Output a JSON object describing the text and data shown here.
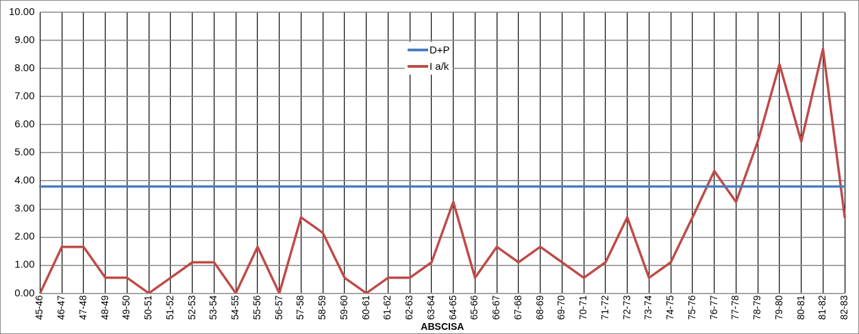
{
  "chart_data": {
    "type": "line",
    "xlabel": "ABSCISA",
    "categories": [
      "45-46",
      "46-47",
      "47-48",
      "48-49",
      "49-50",
      "50-51",
      "51-52",
      "52-53",
      "53-54",
      "54-55",
      "55-56",
      "56-57",
      "57-58",
      "58-59",
      "59-60",
      "60-61",
      "61-62",
      "62-63",
      "63-64",
      "64-65",
      "65-66",
      "66-67",
      "67-68",
      "68-69",
      "69-70",
      "70-71",
      "71-72",
      "72-73",
      "73-74",
      "74-75",
      "75-76",
      "76-77",
      "77-78",
      "78-79",
      "79-80",
      "80-81",
      "81-82",
      "82-83"
    ],
    "series": [
      {
        "name": "D+P",
        "color": "#4a7ebb",
        "values": [
          3.8,
          3.8,
          3.8,
          3.8,
          3.8,
          3.8,
          3.8,
          3.8,
          3.8,
          3.8,
          3.8,
          3.8,
          3.8,
          3.8,
          3.8,
          3.8,
          3.8,
          3.8,
          3.8,
          3.8,
          3.8,
          3.8,
          3.8,
          3.8,
          3.8,
          3.8,
          3.8,
          3.8,
          3.8,
          3.8,
          3.8,
          3.8,
          3.8,
          3.8,
          3.8,
          3.8,
          3.8,
          3.8
        ]
      },
      {
        "name": "I a/k",
        "color": "#be4b48",
        "values": [
          0,
          1.65,
          1.65,
          0.55,
          0.55,
          0,
          0.55,
          1.1,
          1.1,
          0,
          1.65,
          0,
          2.7,
          2.15,
          0.55,
          0,
          0.55,
          0.55,
          1.1,
          3.25,
          0.55,
          1.65,
          1.1,
          1.65,
          1.1,
          0.55,
          1.1,
          2.7,
          0.55,
          1.1,
          2.7,
          4.35,
          3.25,
          5.4,
          8.15,
          5.4,
          8.7,
          2.7
        ]
      }
    ],
    "ylim": [
      0,
      10
    ],
    "yticks": [
      {
        "value": 0,
        "label": "0.00"
      },
      {
        "value": 1,
        "label": "1.00"
      },
      {
        "value": 2,
        "label": "2.00"
      },
      {
        "value": 3,
        "label": "3.00"
      },
      {
        "value": 4,
        "label": "4.00"
      },
      {
        "value": 5,
        "label": "5.00"
      },
      {
        "value": 6,
        "label": "6.00"
      },
      {
        "value": 7,
        "label": "7.00"
      },
      {
        "value": 8,
        "label": "8.00"
      },
      {
        "value": 9,
        "label": "9.00"
      },
      {
        "value": 10,
        "label": "10.00"
      }
    ],
    "grid": true,
    "legend": "top",
    "marker": "none",
    "line_style": "solid"
  }
}
